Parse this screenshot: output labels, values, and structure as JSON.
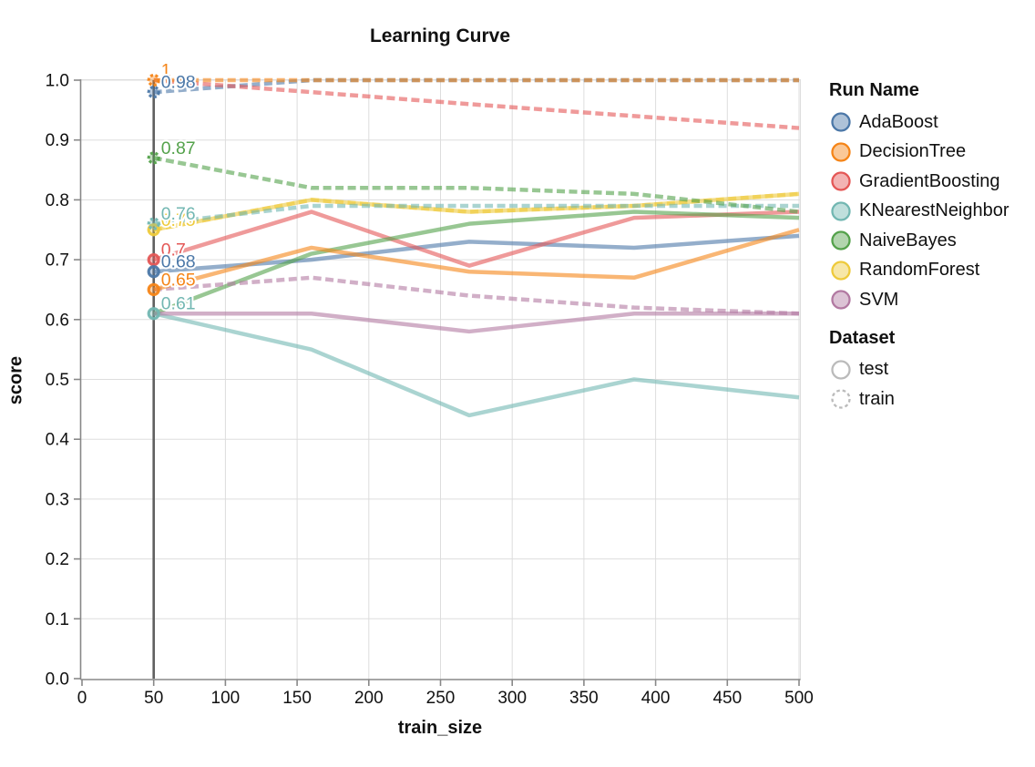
{
  "title": "Learning Curve",
  "axes": {
    "x": {
      "title": "train_size",
      "tick_labels": [
        "0",
        "50",
        "100",
        "150",
        "200",
        "250",
        "300",
        "350",
        "400",
        "450",
        "500"
      ],
      "tick_values": [
        0,
        50,
        100,
        150,
        200,
        250,
        300,
        350,
        400,
        450,
        500
      ],
      "domain": [
        0,
        500
      ]
    },
    "y": {
      "title": "score",
      "tick_labels": [
        "0.0",
        "0.1",
        "0.2",
        "0.3",
        "0.4",
        "0.5",
        "0.6",
        "0.7",
        "0.8",
        "0.9",
        "1.0"
      ],
      "tick_values": [
        0,
        0.1,
        0.2,
        0.3,
        0.4,
        0.5,
        0.6,
        0.7,
        0.8,
        0.9,
        1.0
      ],
      "domain": [
        0,
        1
      ]
    }
  },
  "legend": {
    "run_title": "Run Name",
    "runs": [
      {
        "label": "AdaBoost",
        "color": "#4c78a8"
      },
      {
        "label": "DecisionTree",
        "color": "#f58518"
      },
      {
        "label": "GradientBoosting",
        "color": "#e45756"
      },
      {
        "label": "KNearestNeighbor",
        "color": "#72b7b2"
      },
      {
        "label": "NaiveBayes",
        "color": "#54a24b"
      },
      {
        "label": "RandomForest",
        "color": "#eeca3b"
      },
      {
        "label": "SVM",
        "color": "#b279a2"
      }
    ],
    "dataset_title": "Dataset",
    "datasets": [
      {
        "label": "test",
        "style": "solid"
      },
      {
        "label": "train",
        "style": "dashed"
      }
    ]
  },
  "chart_data": {
    "type": "line",
    "title": "Learning Curve",
    "xlabel": "train_size",
    "ylabel": "score",
    "xlim": [
      0,
      500
    ],
    "ylim": [
      0.0,
      1.0
    ],
    "grid": true,
    "legend_position": "right",
    "rule_x": 50,
    "x": [
      50,
      160,
      270,
      385,
      500
    ],
    "series": [
      {
        "name": "AdaBoost",
        "color": "#4c78a8",
        "test": [
          0.68,
          0.7,
          0.73,
          0.72,
          0.74
        ],
        "train": [
          0.98,
          1.0,
          1.0,
          1.0,
          1.0
        ]
      },
      {
        "name": "DecisionTree",
        "color": "#f58518",
        "test": [
          0.65,
          0.72,
          0.68,
          0.67,
          0.75
        ],
        "train": [
          1.0,
          1.0,
          1.0,
          1.0,
          1.0
        ]
      },
      {
        "name": "GradientBoosting",
        "color": "#e45756",
        "test": [
          0.7,
          0.78,
          0.69,
          0.77,
          0.78
        ],
        "train": [
          1.0,
          0.98,
          0.96,
          0.94,
          0.92
        ]
      },
      {
        "name": "KNearestNeighbor",
        "color": "#72b7b2",
        "test": [
          0.61,
          0.55,
          0.44,
          0.5,
          0.47
        ],
        "train": [
          0.76,
          0.79,
          0.79,
          0.79,
          0.79
        ]
      },
      {
        "name": "NaiveBayes",
        "color": "#54a24b",
        "test": [
          0.61,
          0.71,
          0.76,
          0.78,
          0.77
        ],
        "train": [
          0.87,
          0.82,
          0.82,
          0.81,
          0.78
        ]
      },
      {
        "name": "RandomForest",
        "color": "#eeca3b",
        "test": [
          0.75,
          0.8,
          0.78,
          0.79,
          0.81
        ],
        "train": [
          0.75,
          0.8,
          0.78,
          0.79,
          0.81
        ]
      },
      {
        "name": "SVM",
        "color": "#b279a2",
        "test": [
          0.61,
          0.61,
          0.58,
          0.61,
          0.61
        ],
        "train": [
          0.65,
          0.67,
          0.64,
          0.62,
          0.61
        ]
      }
    ],
    "annotations": [
      {
        "label": "1",
        "series": "DecisionTree",
        "dataset": "train",
        "x": 50,
        "score": 1.0
      },
      {
        "label": "0.98",
        "series": "AdaBoost",
        "dataset": "train",
        "x": 50,
        "score": 0.98
      },
      {
        "label": "0.87",
        "series": "NaiveBayes",
        "dataset": "train",
        "x": 50,
        "score": 0.87
      },
      {
        "label": "0.75",
        "series": "RandomForest",
        "dataset": "test",
        "x": 50,
        "score": 0.75
      },
      {
        "label": "0.76",
        "series": "KNearestNeighbor",
        "dataset": "train",
        "x": 50,
        "score": 0.76
      },
      {
        "label": "0.7",
        "series": "GradientBoosting",
        "dataset": "test",
        "x": 50,
        "score": 0.7
      },
      {
        "label": "0.68",
        "series": "AdaBoost",
        "dataset": "test",
        "x": 50,
        "score": 0.68
      },
      {
        "label": "0.65",
        "series": "DecisionTree",
        "dataset": "test",
        "x": 50,
        "score": 0.65
      },
      {
        "label": "0.61",
        "series": "KNearestNeighbor",
        "dataset": "test",
        "x": 50,
        "score": 0.61
      }
    ]
  }
}
